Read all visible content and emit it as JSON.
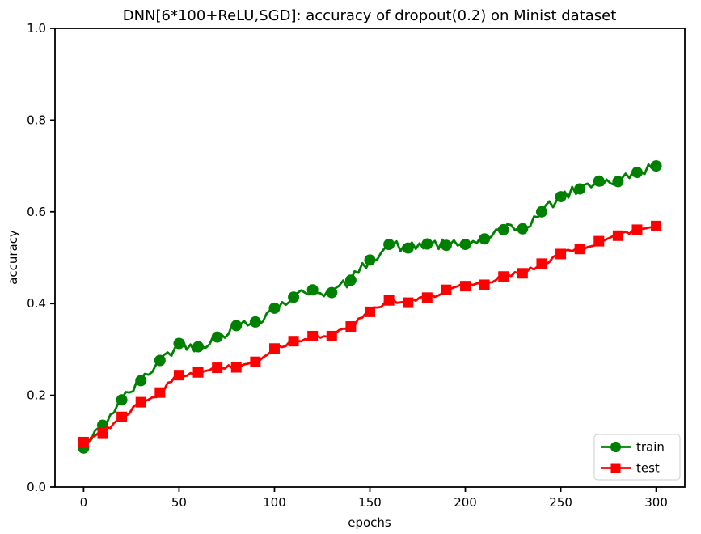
{
  "chart_data": {
    "type": "line",
    "title": "DNN[6*100+ReLU,SGD]: accuracy of dropout(0.2) on Minist dataset",
    "xlabel": "epochs",
    "ylabel": "accuracy",
    "xlim": [
      -15,
      315
    ],
    "ylim": [
      0.0,
      1.0
    ],
    "x_ticks": [
      0,
      50,
      100,
      150,
      200,
      250,
      300
    ],
    "y_ticks": [
      0.0,
      0.2,
      0.4,
      0.6,
      0.8,
      1.0
    ],
    "grid": false,
    "legend_position": "lower right",
    "marker_every": 10,
    "x": [
      0,
      10,
      20,
      30,
      40,
      50,
      60,
      70,
      80,
      90,
      100,
      110,
      120,
      130,
      140,
      150,
      160,
      170,
      180,
      190,
      200,
      210,
      220,
      230,
      240,
      250,
      260,
      270,
      280,
      290,
      300
    ],
    "series": [
      {
        "name": "train",
        "color": "#008000",
        "marker": "circle",
        "values": [
          0.085,
          0.135,
          0.19,
          0.232,
          0.276,
          0.313,
          0.306,
          0.327,
          0.352,
          0.36,
          0.39,
          0.414,
          0.43,
          0.424,
          0.451,
          0.495,
          0.529,
          0.521,
          0.53,
          0.527,
          0.529,
          0.541,
          0.561,
          0.563,
          0.6,
          0.633,
          0.65,
          0.667,
          0.666,
          0.686,
          0.7
        ]
      },
      {
        "name": "test",
        "color": "#ff0000",
        "marker": "square",
        "values": [
          0.098,
          0.118,
          0.153,
          0.185,
          0.206,
          0.244,
          0.25,
          0.26,
          0.261,
          0.273,
          0.302,
          0.318,
          0.329,
          0.329,
          0.35,
          0.382,
          0.407,
          0.402,
          0.413,
          0.43,
          0.438,
          0.441,
          0.459,
          0.466,
          0.487,
          0.508,
          0.519,
          0.536,
          0.548,
          0.561,
          0.569
        ]
      }
    ],
    "line_jitter": {
      "train": 0.012,
      "test": 0.006,
      "seed": 42,
      "step": 2
    }
  }
}
